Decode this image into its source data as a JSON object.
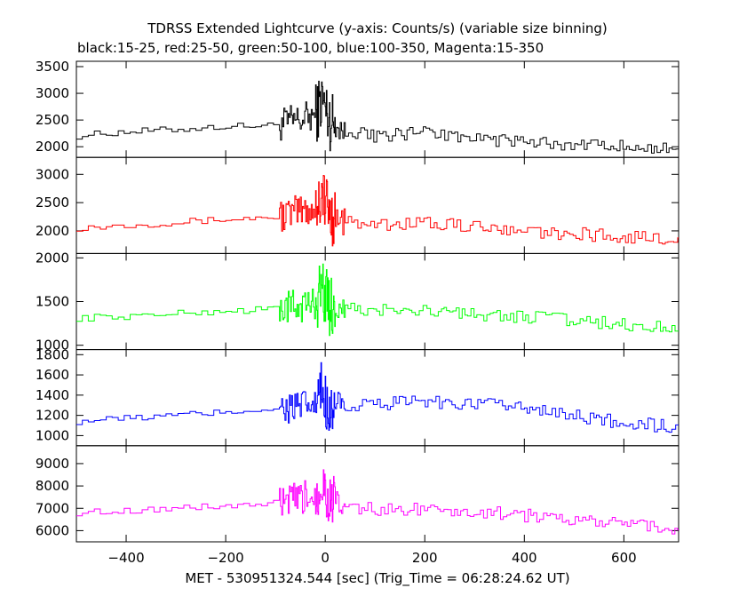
{
  "title": "TDRSS Extended Lightcurve (y-axis: Counts/s) (variable size binning)",
  "subtitle": "black:15-25, red:25-50, green:50-100, blue:100-350, Magenta:15-350",
  "xlabel": "MET - 530951324.544 [sec] (Trig_Time = 06:28:24.62 UT)",
  "chart_data": {
    "type": "line",
    "shared_x_axis": true,
    "xlim": [
      -500,
      710
    ],
    "xticks": [
      -400,
      -200,
      0,
      200,
      400,
      600
    ],
    "panels": [
      {
        "color": "#000000",
        "ylim": [
          1800,
          3600
        ],
        "yticks": [
          2000,
          2500,
          3000,
          3500
        ],
        "x": [
          -500,
          -400,
          -300,
          -200,
          -150,
          -100,
          -50,
          -20,
          -5,
          0,
          10,
          40,
          100,
          200,
          300,
          400,
          500,
          600,
          710
        ],
        "values": [
          2200,
          2280,
          2320,
          2380,
          2390,
          2400,
          2500,
          2600,
          2900,
          2700,
          2500,
          2300,
          2200,
          2250,
          2150,
          2100,
          2050,
          2000,
          1950
        ]
      },
      {
        "color": "#ff0000",
        "ylim": [
          1600,
          3300
        ],
        "yticks": [
          2000,
          2500,
          3000
        ],
        "x": [
          -500,
          -400,
          -300,
          -200,
          -150,
          -100,
          -50,
          -20,
          -5,
          0,
          10,
          40,
          100,
          200,
          300,
          400,
          500,
          600,
          710
        ],
        "values": [
          2050,
          2100,
          2150,
          2200,
          2220,
          2250,
          2350,
          2400,
          2700,
          2500,
          2300,
          2150,
          2100,
          2150,
          2100,
          2000,
          1950,
          1900,
          1850
        ]
      },
      {
        "color": "#00ff00",
        "ylim": [
          950,
          2050
        ],
        "yticks": [
          1000,
          1500,
          2000
        ],
        "x": [
          -500,
          -400,
          -300,
          -200,
          -150,
          -100,
          -50,
          -20,
          -5,
          0,
          10,
          40,
          100,
          200,
          300,
          400,
          500,
          600,
          710
        ],
        "values": [
          1310,
          1330,
          1360,
          1390,
          1400,
          1420,
          1450,
          1480,
          1700,
          1550,
          1450,
          1410,
          1400,
          1380,
          1350,
          1320,
          1290,
          1240,
          1190
        ]
      },
      {
        "color": "#0000ff",
        "ylim": [
          900,
          1850
        ],
        "yticks": [
          1000,
          1200,
          1400,
          1600,
          1800
        ],
        "x": [
          -500,
          -400,
          -300,
          -200,
          -150,
          -100,
          -50,
          -20,
          -5,
          0,
          10,
          40,
          100,
          200,
          300,
          400,
          500,
          600,
          710
        ],
        "values": [
          1140,
          1170,
          1200,
          1230,
          1250,
          1270,
          1280,
          1300,
          1450,
          1350,
          1300,
          1290,
          1310,
          1330,
          1320,
          1280,
          1200,
          1130,
          1080
        ]
      },
      {
        "color": "#ff00ff",
        "ylim": [
          5500,
          9800
        ],
        "yticks": [
          6000,
          7000,
          8000,
          9000
        ],
        "x": [
          -500,
          -400,
          -300,
          -200,
          -150,
          -100,
          -50,
          -20,
          -5,
          0,
          10,
          40,
          100,
          200,
          300,
          400,
          500,
          600,
          710
        ],
        "values": [
          6800,
          6900,
          7000,
          7100,
          7150,
          7200,
          7400,
          7600,
          8300,
          7800,
          7300,
          7050,
          6950,
          7000,
          6850,
          6700,
          6500,
          6300,
          6100
        ]
      }
    ]
  }
}
